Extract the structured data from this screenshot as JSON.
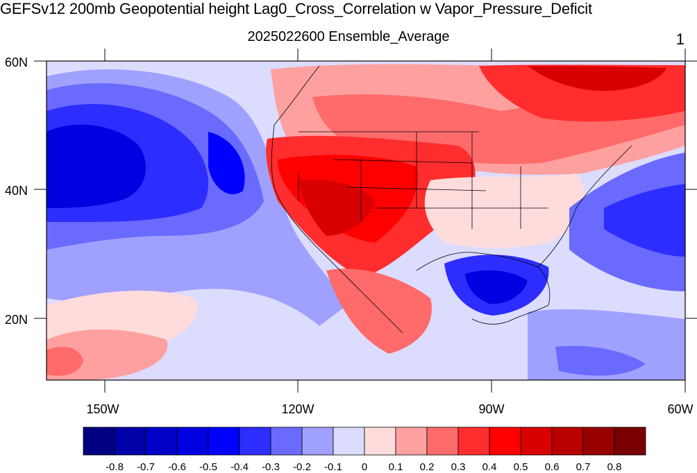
{
  "title": "GEFSv12 200mb Geopotential height Lag0_Cross_Correlation w Vapor_Pressure_Deficit",
  "subtitle": "2025022600 Ensemble_Average",
  "corner_label": "1",
  "lat_labels": [
    "60N",
    "40N",
    "20N"
  ],
  "lon_labels": [
    "150W",
    "120W",
    "90W",
    "60W"
  ],
  "colorbar": {
    "colors": [
      "#000080",
      "#0000a8",
      "#0000c8",
      "#0000e0",
      "#0000ff",
      "#2d2dff",
      "#6a6aff",
      "#a0a0ff",
      "#dcdcff",
      "#ffdcdc",
      "#ffa0a0",
      "#ff6a6a",
      "#ff2d2d",
      "#ff0000",
      "#d80000",
      "#b80000",
      "#980000",
      "#780000"
    ],
    "labels": [
      "-0.8",
      "-0.7",
      "-0.6",
      "-0.5",
      "-0.4",
      "-0.3",
      "-0.2",
      "-0.1",
      "0",
      "0.1",
      "0.2",
      "0.3",
      "0.4",
      "0.5",
      "0.6",
      "0.7",
      "0.8"
    ]
  }
}
